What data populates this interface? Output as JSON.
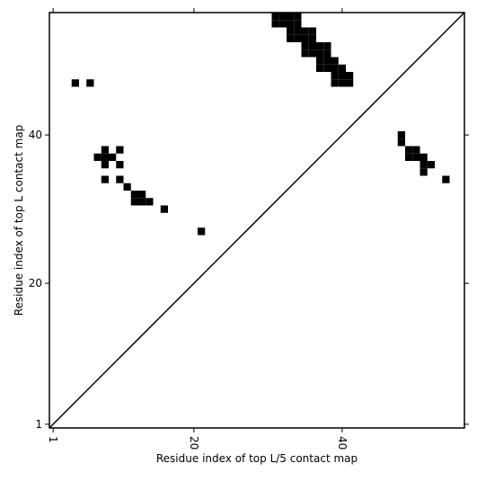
{
  "chart_data": {
    "type": "contact_map",
    "xlabel": "Residue index of top L/5 contact map",
    "ylabel": "Residue index of top L contact map",
    "xlim": [
      0.5,
      56.5
    ],
    "ylim": [
      0.5,
      56.5
    ],
    "xticks": [
      1,
      20,
      40
    ],
    "yticks": [
      1,
      20,
      40
    ],
    "color": "#000000",
    "diagonal": true,
    "x": [
      31,
      32,
      33,
      34,
      31,
      32,
      33,
      34,
      33,
      34,
      35,
      36,
      33,
      34,
      35,
      36,
      35,
      36,
      37,
      38,
      35,
      36,
      37,
      38,
      37,
      38,
      39,
      37,
      38,
      39,
      40,
      39,
      40,
      41,
      39,
      40,
      41,
      4,
      6,
      8,
      10,
      7,
      8,
      9,
      8,
      10,
      8,
      10,
      11,
      12,
      13,
      12,
      13,
      14,
      16,
      21,
      48,
      48,
      49,
      50,
      49,
      50,
      51,
      51,
      52,
      51,
      54
    ],
    "y": [
      56,
      56,
      56,
      56,
      55,
      55,
      55,
      55,
      54,
      54,
      54,
      54,
      53,
      53,
      53,
      53,
      52,
      52,
      52,
      52,
      51,
      51,
      51,
      51,
      50,
      50,
      50,
      49,
      49,
      49,
      49,
      48,
      48,
      48,
      47,
      47,
      47,
      47,
      47,
      38,
      38,
      37,
      37,
      37,
      36,
      36,
      34,
      34,
      33,
      32,
      32,
      31,
      31,
      31,
      30,
      27,
      40,
      39,
      38,
      38,
      37,
      37,
      37,
      36,
      36,
      35,
      34
    ]
  }
}
